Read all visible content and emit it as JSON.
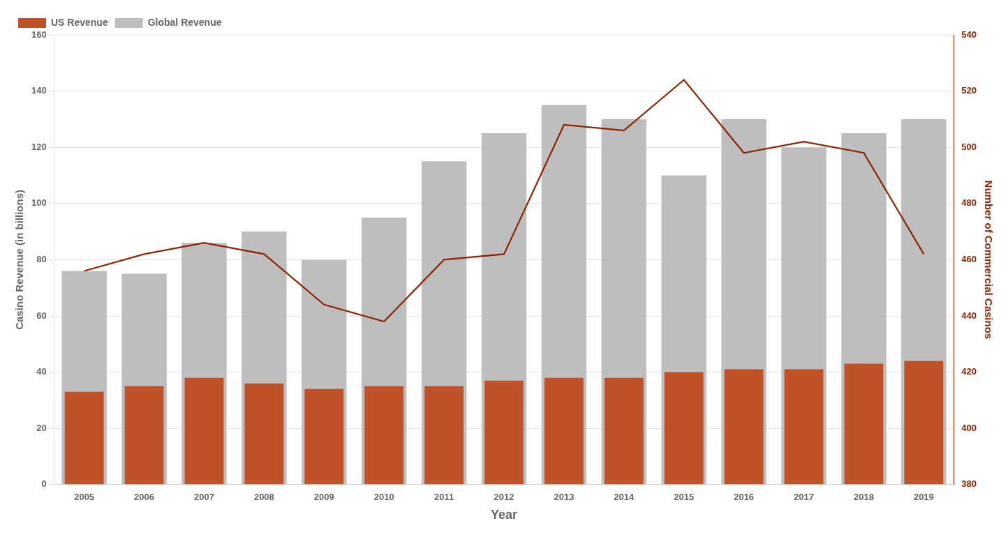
{
  "chart_data": {
    "type": "bar",
    "categories": [
      "2005",
      "2006",
      "2007",
      "2008",
      "2009",
      "2010",
      "2011",
      "2012",
      "2013",
      "2014",
      "2015",
      "2016",
      "2017",
      "2018",
      "2019"
    ],
    "series": [
      {
        "name": "Global Revenue",
        "color": "#BEBEBE",
        "values": [
          76,
          75,
          86,
          90,
          80,
          95,
          115,
          125,
          135,
          130,
          110,
          130,
          120,
          125,
          130
        ]
      },
      {
        "name": "US Revenue",
        "color": "#C0522A",
        "values": [
          33,
          35,
          38,
          36,
          34,
          35,
          35,
          37,
          38,
          38,
          40,
          41,
          41,
          43,
          44
        ]
      },
      {
        "type": "line",
        "color": "#8B2500",
        "axis": "y2",
        "values": [
          456,
          462,
          466,
          462,
          444,
          438,
          460,
          462,
          508,
          506,
          524,
          498,
          502,
          498,
          462
        ]
      }
    ],
    "xlabel": "Year",
    "ylabel": "Casino Revenue (in billions)",
    "y2label": "Number of Commercial Casinos",
    "ylim": [
      0,
      160
    ],
    "yticks": [
      0,
      20,
      40,
      60,
      80,
      100,
      120,
      140,
      160
    ],
    "y2lim": [
      380,
      540
    ],
    "y2ticks": [
      380,
      400,
      420,
      440,
      460,
      480,
      500,
      520,
      540
    ],
    "grid": true,
    "legend": "upper left"
  }
}
